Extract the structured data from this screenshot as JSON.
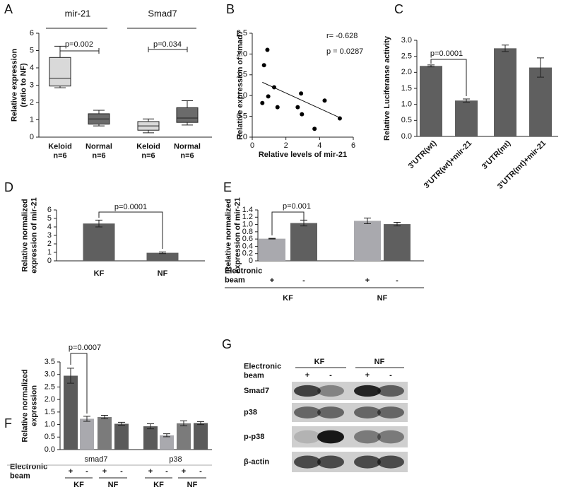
{
  "chart_data": [
    {
      "panel": "A",
      "type": "box",
      "ylabel": "Relative expression\n(ratio to NF)",
      "groups": [
        "mir-21",
        "Smad7"
      ],
      "categories": [
        "Keloid\nn=6",
        "Normal\nn=6",
        "Keloid\nn=6",
        "Normal\nn=6"
      ],
      "min": [
        2.85,
        0.65,
        0.25,
        0.7
      ],
      "q1": [
        2.95,
        0.75,
        0.4,
        0.85
      ],
      "median": [
        3.4,
        1.05,
        0.65,
        1.1
      ],
      "q3": [
        4.6,
        1.35,
        0.9,
        1.7
      ],
      "max": [
        5.25,
        1.55,
        1.05,
        2.1
      ],
      "colors": [
        "#d9d9d9",
        "#6b6b6b",
        "#d9d9d9",
        "#6b6b6b"
      ],
      "ylim": [
        0,
        6
      ],
      "yticks": [
        0,
        1,
        2,
        3,
        4,
        5,
        6
      ],
      "annotations": [
        "p=0.002",
        "p=0.034"
      ]
    },
    {
      "panel": "B",
      "type": "scatter",
      "xlabel": "Relative levels of mir-21",
      "ylabel": "Relative expression of smad7",
      "x": [
        0.6,
        0.7,
        0.9,
        0.95,
        1.3,
        1.5,
        2.7,
        2.9,
        2.95,
        3.7,
        4.3,
        5.2
      ],
      "y": [
        0.82,
        1.73,
        2.1,
        0.98,
        1.2,
        0.72,
        0.72,
        1.05,
        0.55,
        0.2,
        0.88,
        0.45
      ],
      "color": "#000000",
      "trendline": {
        "x": [
          0.6,
          5.3
        ],
        "y": [
          1.32,
          0.45
        ]
      },
      "xlim": [
        0,
        6
      ],
      "xticks": [
        0,
        2,
        4,
        6
      ],
      "ylim": [
        0,
        2.5
      ],
      "yticks": [
        {
          "value": 0,
          "label": "0.0"
        },
        0.5,
        {
          "value": 1,
          "label": "1.0"
        },
        1.5,
        {
          "value": 2,
          "label": "2.0"
        },
        2.5
      ],
      "annotations": [
        "r= -0.628",
        "p = 0.0287"
      ]
    },
    {
      "panel": "C",
      "type": "bar",
      "ylabel": "Relative Luciferanse activity",
      "categories": [
        "3'UTR(wt)",
        "3'UTR(wt)+mir-21",
        "3'UTR(mt)",
        "3'UTR(mt)+mir-21"
      ],
      "values": [
        2.2,
        1.12,
        2.75,
        2.15
      ],
      "errors": [
        0.03,
        0.05,
        0.1,
        0.3
      ],
      "color": "#5f5f5f",
      "ylim": [
        0,
        3
      ],
      "yticks": [
        {
          "value": 0,
          "label": "0.0"
        },
        0.5,
        {
          "value": 1,
          "label": "1.0"
        },
        1.5,
        {
          "value": 2,
          "label": "2.0"
        },
        2.5,
        {
          "value": 3,
          "label": "3.0"
        }
      ],
      "annotations": [
        "p=0.0001"
      ]
    },
    {
      "panel": "D",
      "type": "bar",
      "ylabel": "Relative normalized\nexpression of mir-21",
      "categories": [
        "KF",
        "NF"
      ],
      "values": [
        4.4,
        0.95
      ],
      "errors": [
        0.4,
        0.1
      ],
      "color": "#5f5f5f",
      "ylim": [
        0,
        6
      ],
      "yticks": [
        0,
        1,
        2,
        3,
        4,
        5,
        6
      ],
      "annotations": [
        "p=0.0001"
      ]
    },
    {
      "panel": "E",
      "type": "grouped_bar",
      "ylabel": "Relative normalized\nexpression of mir-21",
      "row_label": "Electronic\nbeam",
      "categories": [
        "KF",
        "NF"
      ],
      "series": [
        {
          "name": "+",
          "color": "#a9a9ae",
          "values": [
            0.61,
            1.1
          ],
          "errors": [
            0.01,
            0.08
          ]
        },
        {
          "name": "-",
          "color": "#5f5f5f",
          "values": [
            1.04,
            1.01
          ],
          "errors": [
            0.08,
            0.05
          ]
        }
      ],
      "ylim": [
        0,
        1.4
      ],
      "yticks": [
        0,
        0.2,
        0.4,
        0.6,
        0.8,
        {
          "value": 1,
          "label": "1.0"
        },
        1.2,
        1.4
      ],
      "annotations": [
        "p=0.001"
      ]
    },
    {
      "panel": "F",
      "type": "grouped_bar",
      "ylabel": "Relative normalized\nexpression",
      "row_label": "Electronic\nbeam",
      "categories": [
        "smad7",
        "p38"
      ],
      "series": [
        {
          "name": "+",
          "group": "KF",
          "color": "#5a5a5a",
          "values": [
            2.95,
            0.93
          ],
          "errors": [
            0.3,
            0.1
          ]
        },
        {
          "name": "-",
          "group": "KF",
          "color": "#a9a9ae",
          "values": [
            1.23,
            0.57
          ],
          "errors": [
            0.1,
            0.06
          ]
        },
        {
          "name": "+",
          "group": "NF",
          "color": "#7b7b7b",
          "values": [
            1.3,
            1.05
          ],
          "errors": [
            0.07,
            0.1
          ]
        },
        {
          "name": "-",
          "group": "NF",
          "color": "#5a5a5a",
          "values": [
            1.03,
            1.06
          ],
          "errors": [
            0.06,
            0.06
          ]
        }
      ],
      "ylim": [
        0,
        3.5
      ],
      "yticks": [
        {
          "value": 0,
          "label": "0.0"
        },
        0.5,
        {
          "value": 1,
          "label": "1.0"
        },
        1.5,
        {
          "value": 2,
          "label": "2.0"
        },
        2.5,
        {
          "value": 3,
          "label": "3.0"
        },
        3.5
      ],
      "annotations": [
        "p=0.0007"
      ]
    }
  ],
  "blot": {
    "panel": "G",
    "row_label": "Electronic\nbeam",
    "groups": [
      "KF",
      "NF"
    ],
    "beam": [
      "+",
      "-",
      "+",
      "-"
    ],
    "proteins": [
      "Smad7",
      "p38",
      "p-p38",
      "β-actin"
    ]
  }
}
